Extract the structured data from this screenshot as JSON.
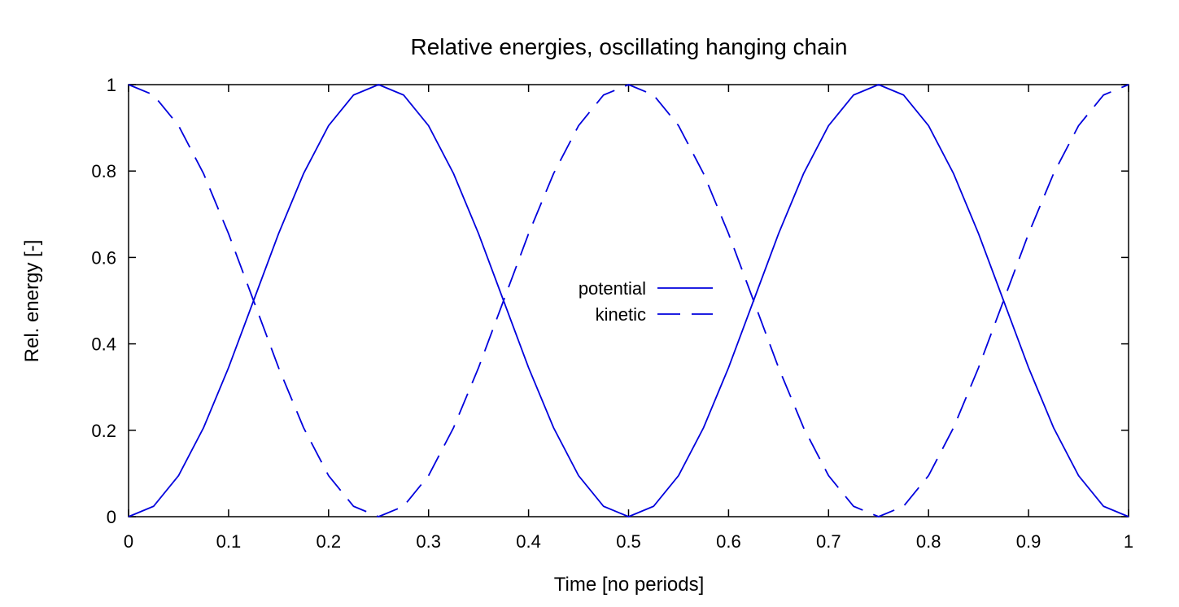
{
  "chart_data": {
    "type": "line",
    "title": "Relative energies, oscillating hanging chain",
    "xlabel": "Time [no periods]",
    "ylabel": "Rel. energy [-]",
    "xlim": [
      0,
      1
    ],
    "ylim": [
      0,
      1
    ],
    "xticks": [
      "0",
      "0.1",
      "0.2",
      "0.3",
      "0.4",
      "0.5",
      "0.6",
      "0.7",
      "0.8",
      "0.9",
      "1"
    ],
    "yticks": [
      "0",
      "0.2",
      "0.4",
      "0.6",
      "0.8",
      "1"
    ],
    "grid": false,
    "legend_position": "center",
    "line_color": "#0000dd",
    "x": [
      0,
      0.025,
      0.05,
      0.075,
      0.1,
      0.125,
      0.15,
      0.175,
      0.2,
      0.225,
      0.25,
      0.275,
      0.3,
      0.325,
      0.35,
      0.375,
      0.4,
      0.425,
      0.45,
      0.475,
      0.5,
      0.525,
      0.55,
      0.575,
      0.6,
      0.625,
      0.65,
      0.675,
      0.7,
      0.725,
      0.75,
      0.775,
      0.8,
      0.825,
      0.85,
      0.875,
      0.9,
      0.925,
      0.95,
      0.975,
      1
    ],
    "series": [
      {
        "name": "potential",
        "style": "solid",
        "values": [
          0,
          0.024,
          0.095,
          0.206,
          0.345,
          0.5,
          0.655,
          0.794,
          0.905,
          0.976,
          1,
          0.976,
          0.905,
          0.794,
          0.655,
          0.5,
          0.345,
          0.206,
          0.095,
          0.024,
          0,
          0.024,
          0.095,
          0.206,
          0.345,
          0.5,
          0.655,
          0.794,
          0.905,
          0.976,
          1,
          0.976,
          0.905,
          0.794,
          0.655,
          0.5,
          0.345,
          0.206,
          0.095,
          0.024,
          0
        ]
      },
      {
        "name": "kinetic",
        "style": "dashed",
        "values": [
          1,
          0.976,
          0.905,
          0.794,
          0.655,
          0.5,
          0.345,
          0.206,
          0.095,
          0.024,
          0,
          0.024,
          0.095,
          0.206,
          0.345,
          0.5,
          0.655,
          0.794,
          0.905,
          0.976,
          1,
          0.976,
          0.905,
          0.794,
          0.655,
          0.5,
          0.345,
          0.206,
          0.095,
          0.024,
          0,
          0.024,
          0.095,
          0.206,
          0.345,
          0.5,
          0.655,
          0.794,
          0.905,
          0.976,
          1
        ]
      }
    ]
  }
}
